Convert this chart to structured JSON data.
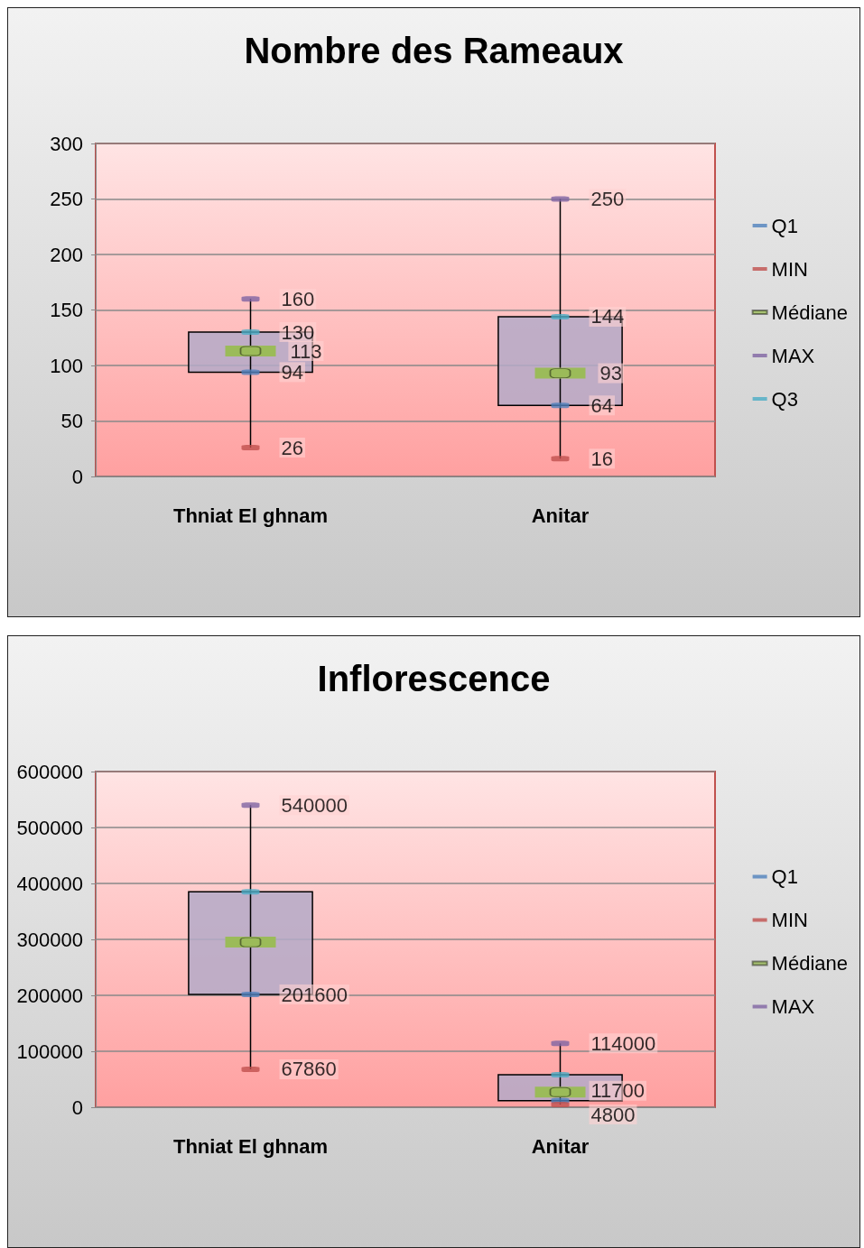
{
  "chart_data": [
    {
      "type": "box",
      "title": "Nombre des Rameaux",
      "categories": [
        "Thniat El ghnam",
        "Anitar"
      ],
      "boxes": [
        {
          "low": 26,
          "q1": 94,
          "median": 113,
          "q3": 130,
          "high": 160
        },
        {
          "low": 16,
          "q1": 64,
          "median": 93,
          "q3": 144,
          "high": 250
        }
      ],
      "series": [
        {
          "name": "Q1",
          "type": "scatter",
          "color": "#4f81bd",
          "values": [
            94,
            64
          ],
          "value_labels": [
            "94",
            "64"
          ]
        },
        {
          "name": "MIN",
          "type": "scatter",
          "color": "#c0504d",
          "values": [
            26,
            16
          ],
          "value_labels": [
            "26",
            "16"
          ]
        },
        {
          "name": "Médiane",
          "type": "scatter",
          "color": "#9bbb59",
          "values": [
            113,
            93
          ],
          "value_labels": [
            "113",
            "93"
          ]
        },
        {
          "name": "MAX",
          "type": "scatter",
          "color": "#8064a2",
          "values": [
            160,
            250
          ],
          "value_labels": [
            "160",
            "250"
          ]
        },
        {
          "name": "Q3",
          "type": "scatter",
          "color": "#4bacc6",
          "values": [
            130,
            144
          ],
          "value_labels": [
            "130",
            "144"
          ]
        }
      ],
      "ylim": [
        0,
        300
      ],
      "yticks": [
        0,
        50,
        100,
        150,
        200,
        250,
        300
      ],
      "grid": "y",
      "legend": "right"
    },
    {
      "type": "box",
      "title": "Inflorescence",
      "categories": [
        "Thniat El ghnam",
        "Anitar"
      ],
      "boxes": [
        {
          "low": 67860,
          "q1": 201600,
          "median": 295000,
          "q3": 385000,
          "high": 540000
        },
        {
          "low": 4800,
          "q1": 11700,
          "median": 27000,
          "q3": 58000,
          "high": 114000
        }
      ],
      "series": [
        {
          "name": "Q1",
          "type": "scatter",
          "color": "#4f81bd",
          "values": [
            201600,
            11700
          ],
          "value_labels": [
            "201600",
            "11700"
          ]
        },
        {
          "name": "MIN",
          "type": "scatter",
          "color": "#c0504d",
          "values": [
            67860,
            4800
          ],
          "value_labels": [
            "67860",
            "4800"
          ]
        },
        {
          "name": "Médiane",
          "type": "scatter",
          "color": "#9bbb59",
          "values": [
            295000,
            27000
          ],
          "value_labels": [
            null,
            null
          ]
        },
        {
          "name": "MAX",
          "type": "scatter",
          "color": "#8064a2",
          "values": [
            540000,
            114000
          ],
          "value_labels": [
            "540000",
            "114000"
          ]
        },
        {
          "type": "scatter",
          "color": "#4bacc6",
          "values": [
            385000,
            58000
          ],
          "value_labels": [
            null,
            null
          ]
        }
      ],
      "ylim": [
        0,
        600000
      ],
      "yticks": [
        0,
        100000,
        200000,
        300000,
        400000,
        500000,
        600000
      ],
      "grid": "y",
      "legend": "right"
    }
  ]
}
